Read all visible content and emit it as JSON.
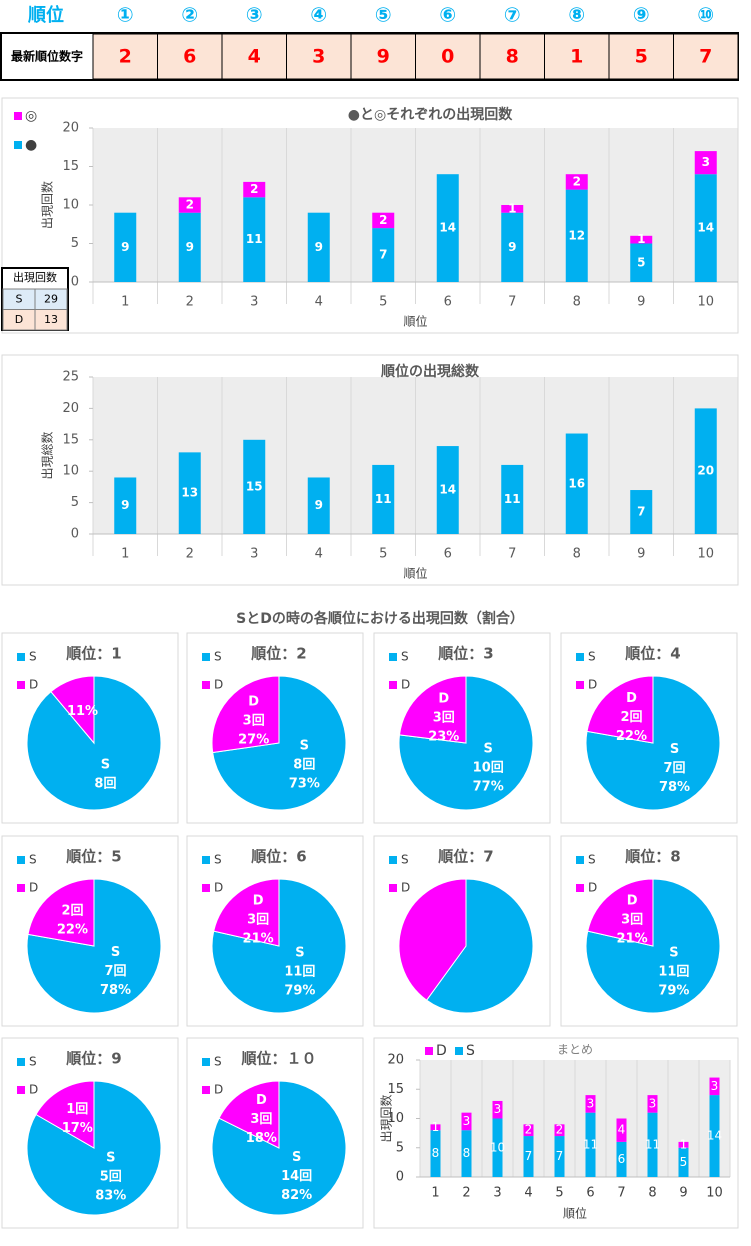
{
  "header": {
    "label": "順位",
    "positions": [
      "①",
      "②",
      "③",
      "④",
      "⑤",
      "⑥",
      "⑦",
      "⑧",
      "⑨",
      "⑩"
    ],
    "row_label": "最新順位数字",
    "digits": [
      2,
      6,
      4,
      3,
      9,
      0,
      8,
      1,
      5,
      7
    ]
  },
  "summary_table": {
    "title": "出現回数",
    "rows": [
      [
        "S",
        29
      ],
      [
        "D",
        13
      ]
    ]
  },
  "section_title": "SとDの時の各順位における出現回数（割合）",
  "chart_data": [
    {
      "type": "stacked_bar",
      "title": "●と◎それぞれの出現回数",
      "x_label": "順位",
      "y_label": "出現回数",
      "categories": [
        "1",
        "2",
        "3",
        "4",
        "5",
        "6",
        "7",
        "8",
        "9",
        "10"
      ],
      "series": [
        {
          "name": "●",
          "color": "#00b0f0",
          "values": [
            9,
            9,
            11,
            9,
            7,
            14,
            9,
            12,
            5,
            14
          ]
        },
        {
          "name": "◎",
          "color": "#ff00ff",
          "values": [
            null,
            2,
            2,
            null,
            2,
            null,
            1,
            2,
            1,
            3
          ]
        }
      ],
      "ylim": [
        0,
        20
      ],
      "yticks": [
        0,
        5,
        10,
        15,
        20
      ]
    },
    {
      "type": "bar",
      "title": "順位の出現総数",
      "x_label": "順位",
      "y_label": "出現総数",
      "categories": [
        "1",
        "2",
        "3",
        "4",
        "5",
        "6",
        "7",
        "8",
        "9",
        "10"
      ],
      "values": [
        9,
        13,
        15,
        9,
        11,
        14,
        11,
        16,
        7,
        20
      ],
      "color": "#00b0f0",
      "ylim": [
        0,
        25
      ],
      "yticks": [
        0,
        5,
        10,
        15,
        20,
        25
      ]
    },
    {
      "type": "pie",
      "title": "順位：1",
      "categories": [
        "S",
        "D"
      ],
      "colors": [
        "#00b0f0",
        "#ff00ff"
      ],
      "values": [
        8,
        1
      ],
      "value_labels": [
        "8回",
        null
      ],
      "percent_labels": [
        null,
        "11%"
      ],
      "label_shows_name": [
        true,
        false
      ]
    },
    {
      "type": "pie",
      "title": "順位：2",
      "categories": [
        "S",
        "D"
      ],
      "colors": [
        "#00b0f0",
        "#ff00ff"
      ],
      "values": [
        8,
        3
      ],
      "value_labels": [
        "8回",
        "3回"
      ],
      "percent_labels": [
        "73%",
        "27%"
      ],
      "label_shows_name": [
        true,
        true
      ]
    },
    {
      "type": "pie",
      "title": "順位：3",
      "categories": [
        "S",
        "D"
      ],
      "colors": [
        "#00b0f0",
        "#ff00ff"
      ],
      "values": [
        10,
        3
      ],
      "value_labels": [
        "10回",
        "3回"
      ],
      "percent_labels": [
        "77%",
        "23%"
      ],
      "label_shows_name": [
        true,
        true
      ]
    },
    {
      "type": "pie",
      "title": "順位：4",
      "categories": [
        "S",
        "D"
      ],
      "colors": [
        "#00b0f0",
        "#ff00ff"
      ],
      "values": [
        7,
        2
      ],
      "value_labels": [
        "7回",
        "2回"
      ],
      "percent_labels": [
        "78%",
        "22%"
      ],
      "label_shows_name": [
        true,
        true
      ]
    },
    {
      "type": "pie",
      "title": "順位：5",
      "categories": [
        "S",
        "D"
      ],
      "colors": [
        "#00b0f0",
        "#ff00ff"
      ],
      "values": [
        7,
        2
      ],
      "value_labels": [
        "7回",
        "2回"
      ],
      "percent_labels": [
        "78%",
        "22%"
      ],
      "label_shows_name": [
        true,
        false
      ]
    },
    {
      "type": "pie",
      "title": "順位：6",
      "categories": [
        "S",
        "D"
      ],
      "colors": [
        "#00b0f0",
        "#ff00ff"
      ],
      "values": [
        11,
        3
      ],
      "value_labels": [
        "11回",
        "3回"
      ],
      "percent_labels": [
        "79%",
        "21%"
      ],
      "label_shows_name": [
        true,
        true
      ]
    },
    {
      "type": "pie",
      "title": "順位：7",
      "categories": [
        "S",
        "D"
      ],
      "colors": [
        "#00b0f0",
        "#ff00ff"
      ],
      "values": [
        6,
        4
      ],
      "value_labels": [
        null,
        null
      ],
      "percent_labels": [
        null,
        null
      ],
      "label_shows_name": [
        false,
        false
      ]
    },
    {
      "type": "pie",
      "title": "順位：8",
      "categories": [
        "S",
        "D"
      ],
      "colors": [
        "#00b0f0",
        "#ff00ff"
      ],
      "values": [
        11,
        3
      ],
      "value_labels": [
        "11回",
        "3回"
      ],
      "percent_labels": [
        "79%",
        "21%"
      ],
      "label_shows_name": [
        true,
        true
      ]
    },
    {
      "type": "pie",
      "title": "順位：9",
      "categories": [
        "S",
        "D"
      ],
      "colors": [
        "#00b0f0",
        "#ff00ff"
      ],
      "values": [
        5,
        1
      ],
      "value_labels": [
        "5回",
        "1回"
      ],
      "percent_labels": [
        "83%",
        "17%"
      ],
      "label_shows_name": [
        true,
        false
      ]
    },
    {
      "type": "pie",
      "title": "順位：１０",
      "categories": [
        "S",
        "D"
      ],
      "colors": [
        "#00b0f0",
        "#ff00ff"
      ],
      "values": [
        14,
        3
      ],
      "value_labels": [
        "14回",
        "3回"
      ],
      "percent_labels": [
        "82%",
        "18%"
      ],
      "label_shows_name": [
        true,
        true
      ]
    },
    {
      "type": "stacked_bar",
      "title": "まとめ",
      "x_label": "順位",
      "y_label": "出現回数",
      "categories": [
        "1",
        "2",
        "3",
        "4",
        "5",
        "6",
        "7",
        "8",
        "9",
        "10"
      ],
      "series": [
        {
          "name": "S",
          "color": "#00b0f0",
          "values": [
            8,
            8,
            10,
            7,
            7,
            11,
            6,
            11,
            5,
            14
          ]
        },
        {
          "name": "D",
          "color": "#ff00ff",
          "values": [
            1,
            3,
            3,
            2,
            2,
            3,
            4,
            3,
            1,
            3
          ]
        }
      ],
      "ylim": [
        0,
        20
      ],
      "yticks": [
        0,
        5,
        10,
        15,
        20
      ]
    }
  ]
}
